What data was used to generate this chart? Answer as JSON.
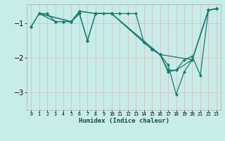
{
  "xlabel": "Humidex (Indice chaleur)",
  "bg_color": "#c8ece8",
  "grid_color": "#d8b8b8",
  "line_color": "#1a7a6e",
  "xlim": [
    -0.5,
    23.5
  ],
  "ylim": [
    -3.5,
    -0.45
  ],
  "yticks": [
    -3,
    -2,
    -1
  ],
  "xticks": [
    0,
    1,
    2,
    3,
    4,
    5,
    6,
    7,
    8,
    9,
    10,
    11,
    12,
    13,
    14,
    15,
    16,
    17,
    18,
    19,
    20,
    21,
    22,
    23
  ],
  "series": [
    {
      "x": [
        0,
        1,
        2,
        3,
        4,
        5,
        6,
        7,
        8,
        9,
        10,
        11,
        12,
        13,
        14,
        15,
        16,
        17,
        18,
        19,
        20,
        21,
        22,
        23
      ],
      "y": [
        -1.1,
        -0.72,
        -0.72,
        -0.95,
        -0.95,
        -0.95,
        -0.72,
        -1.5,
        -0.72,
        -0.72,
        -0.72,
        -0.72,
        -0.72,
        -0.72,
        -1.55,
        -1.75,
        -1.9,
        -2.4,
        -2.35,
        -2.05,
        -1.95,
        -2.5,
        -0.62,
        -0.58
      ]
    },
    {
      "x": [
        1,
        3,
        4,
        5,
        6,
        7,
        8,
        10,
        14,
        15,
        16,
        17,
        18,
        19,
        20,
        22,
        23
      ],
      "y": [
        -0.72,
        -0.95,
        -0.95,
        -0.95,
        -0.72,
        -1.5,
        -0.72,
        -0.72,
        -1.55,
        -1.75,
        -1.9,
        -2.2,
        -3.05,
        -2.4,
        -2.05,
        -0.62,
        -0.58
      ]
    },
    {
      "x": [
        0,
        1,
        5,
        6,
        8,
        10,
        14,
        15,
        16,
        17,
        18,
        20,
        22,
        23
      ],
      "y": [
        -1.1,
        -0.72,
        -0.95,
        -0.65,
        -0.72,
        -0.72,
        -1.55,
        -1.75,
        -1.9,
        -2.35,
        -2.35,
        -2.05,
        -0.62,
        -0.58
      ]
    },
    {
      "x": [
        1,
        5,
        6,
        8,
        10,
        16,
        20,
        22,
        23
      ],
      "y": [
        -0.72,
        -0.95,
        -0.65,
        -0.72,
        -0.72,
        -1.9,
        -2.05,
        -0.62,
        -0.58
      ]
    }
  ]
}
